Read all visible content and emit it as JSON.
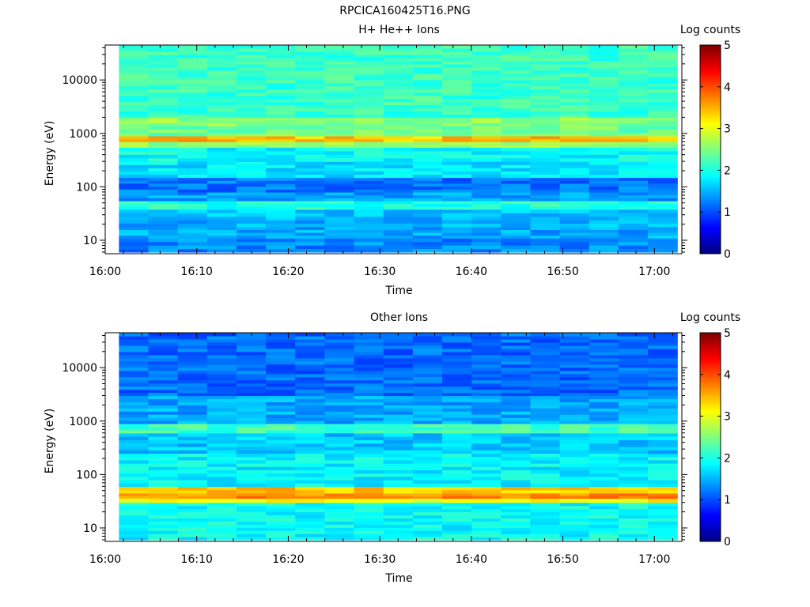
{
  "figure_title": "RPCICA160425T16.PNG",
  "chart_data": [
    {
      "type": "heatmap",
      "title": "H+ He++ Ions",
      "xlabel": "Time",
      "ylabel": "Energy (eV)",
      "colorbar_label": "Log counts",
      "y_scale": "log",
      "x_range": [
        "16:00",
        "17:03"
      ],
      "y_range": [
        5.6,
        45000
      ],
      "x_ticks": [
        "16:00",
        "16:10",
        "16:20",
        "16:30",
        "16:40",
        "16:50",
        "17:00"
      ],
      "y_ticks": [
        "10",
        "100",
        "1000",
        "10000"
      ],
      "colorbar_range": [
        0,
        5
      ],
      "colorbar_ticks": [
        "0",
        "1",
        "2",
        "3",
        "4",
        "5"
      ],
      "data_start": "16:01.5",
      "data_end": "17:02.5",
      "time_bins": 19,
      "energy_bands": [
        {
          "e_low": 6,
          "e_high": 11,
          "value": 1.3
        },
        {
          "e_low": 11,
          "e_high": 18,
          "value": 1.45
        },
        {
          "e_low": 18,
          "e_high": 28,
          "value": 1.5
        },
        {
          "e_low": 28,
          "e_high": 38,
          "value": 1.6
        },
        {
          "e_low": 38,
          "e_high": 55,
          "value": 2.05
        },
        {
          "e_low": 55,
          "e_high": 80,
          "value": 1.4
        },
        {
          "e_low": 80,
          "e_high": 150,
          "value": 1.2
        },
        {
          "e_low": 150,
          "e_high": 300,
          "value": 1.75
        },
        {
          "e_low": 300,
          "e_high": 550,
          "value": 1.9
        },
        {
          "e_low": 550,
          "e_high": 700,
          "value": 2.6
        },
        {
          "e_low": 700,
          "e_high": 900,
          "value": 3.45
        },
        {
          "e_low": 900,
          "e_high": 1400,
          "value": 2.4
        },
        {
          "e_low": 1400,
          "e_high": 2000,
          "value": 2.55
        },
        {
          "e_low": 2000,
          "e_high": 45000,
          "value": 2.15
        }
      ]
    },
    {
      "type": "heatmap",
      "title": "Other Ions",
      "xlabel": "Time",
      "ylabel": "Energy (eV)",
      "colorbar_label": "Log counts",
      "y_scale": "log",
      "x_range": [
        "16:00",
        "17:03"
      ],
      "y_range": [
        5.6,
        45000
      ],
      "x_ticks": [
        "16:00",
        "16:10",
        "16:20",
        "16:30",
        "16:40",
        "16:50",
        "17:00"
      ],
      "y_ticks": [
        "10",
        "100",
        "1000",
        "10000"
      ],
      "colorbar_range": [
        0,
        5
      ],
      "colorbar_ticks": [
        "0",
        "1",
        "2",
        "3",
        "4",
        "5"
      ],
      "data_start": "16:01.5",
      "data_end": "17:02.5",
      "time_bins": 19,
      "energy_bands": [
        {
          "e_low": 6,
          "e_high": 30,
          "value": 1.9
        },
        {
          "e_low": 30,
          "e_high": 36,
          "value": 3.1
        },
        {
          "e_low": 36,
          "e_high": 45,
          "value": 3.7
        },
        {
          "e_low": 45,
          "e_high": 60,
          "value": 3.4
        },
        {
          "e_low": 60,
          "e_high": 250,
          "value": 1.85
        },
        {
          "e_low": 250,
          "e_high": 600,
          "value": 1.6
        },
        {
          "e_low": 600,
          "e_high": 900,
          "value": 2.2
        },
        {
          "e_low": 900,
          "e_high": 3000,
          "value": 1.45
        },
        {
          "e_low": 3000,
          "e_high": 45000,
          "value": 1.15
        }
      ]
    }
  ]
}
